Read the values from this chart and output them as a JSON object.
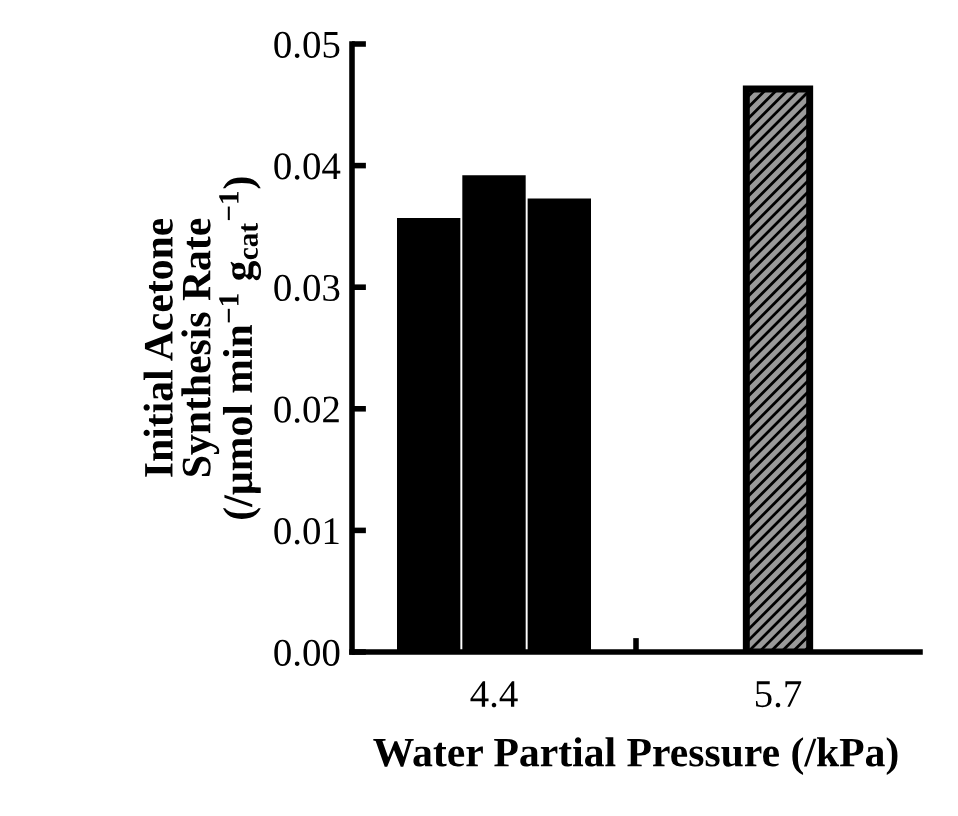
{
  "chart_data": {
    "type": "bar",
    "categories": [
      "4.4",
      "5.7"
    ],
    "series": [
      {
        "color": "#000000",
        "values": [
          0.0357,
          null
        ]
      },
      {
        "color": "#000000",
        "colors": [
          "#000000",
          "#999999"
        ],
        "values": [
          0.0392,
          0.0463
        ]
      },
      {
        "color": "#000000",
        "values": [
          0.0373,
          null
        ]
      }
    ],
    "xlabel": "Water Partial Pressure (/kPa)",
    "ylabel": "Initial Acetone\nSynthesis Rate\n(/µmol min$^{−1}$ g$_{cat}$$^{−1}$)",
    "ylim": [
      0,
      0.05
    ],
    "yticks": [
      {
        "value": 0,
        "label": "0.00"
      },
      {
        "value": 0.01,
        "label": "0.01"
      },
      {
        "value": 0.02,
        "label": "0.02"
      },
      {
        "value": 0.03,
        "label": "0.03"
      },
      {
        "value": 0.04,
        "label": "0.04"
      },
      {
        "value": 0.05,
        "label": "0.05"
      }
    ],
    "grid": false,
    "legend": false
  }
}
